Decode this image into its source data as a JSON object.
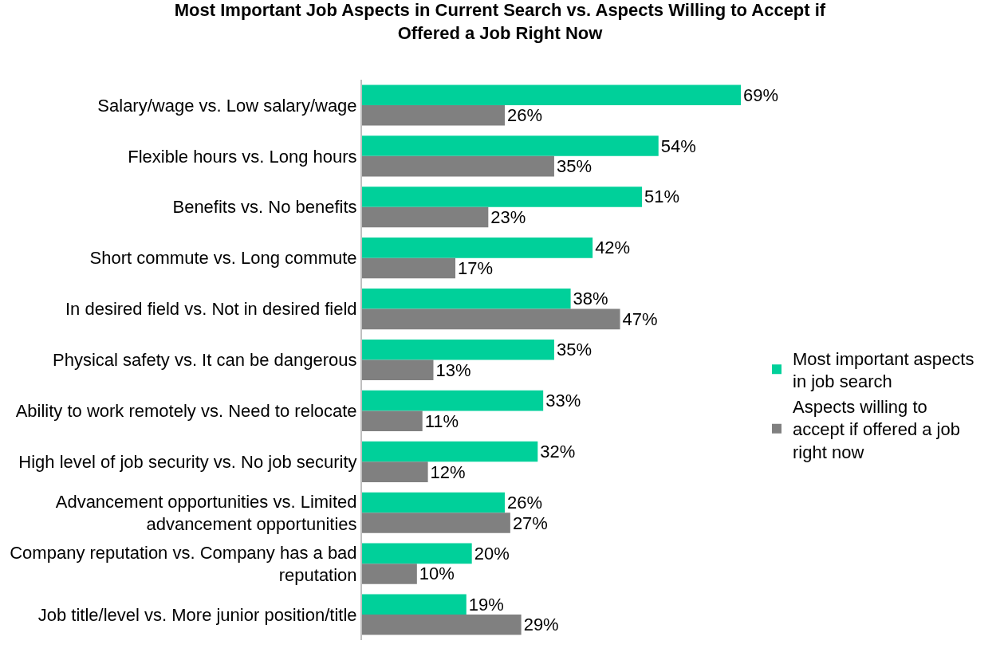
{
  "chart_data": {
    "type": "bar",
    "orientation": "horizontal",
    "title": "Most Important Job Aspects in Current Search vs. Aspects Willing to Accept if Offered a Job Right Now",
    "categories": [
      "Salary/wage vs. Low salary/wage",
      "Flexible hours vs. Long hours",
      "Benefits vs. No benefits",
      "Short commute vs. Long commute",
      "In desired field vs. Not in desired field",
      "Physical safety vs. It can be dangerous",
      "Ability to work remotely vs. Need to relocate",
      "High level of job security vs. No job security",
      "Advancement opportunities vs. Limited advancement opportunities",
      "Company reputation vs. Company has a bad reputation",
      "Job title/level vs. More junior position/title"
    ],
    "series": [
      {
        "name": "Most important aspects in job search",
        "color": "#00d09a",
        "values": [
          69,
          54,
          51,
          42,
          38,
          35,
          33,
          32,
          26,
          20,
          19
        ],
        "value_labels": [
          "69%",
          "54%",
          "51%",
          "42%",
          "38%",
          "35%",
          "33%",
          "32%",
          "26%",
          "20%",
          "19%"
        ]
      },
      {
        "name": "Aspects willing to accept if offered a job right now",
        "color": "#808080",
        "values": [
          26,
          35,
          23,
          17,
          47,
          13,
          11,
          12,
          27,
          10,
          29
        ],
        "value_labels": [
          "26%",
          "35%",
          "23%",
          "17%",
          "47%",
          "13%",
          "11%",
          "12%",
          "27%",
          "10%",
          "29%"
        ]
      }
    ],
    "grid": false,
    "legend": "right"
  }
}
